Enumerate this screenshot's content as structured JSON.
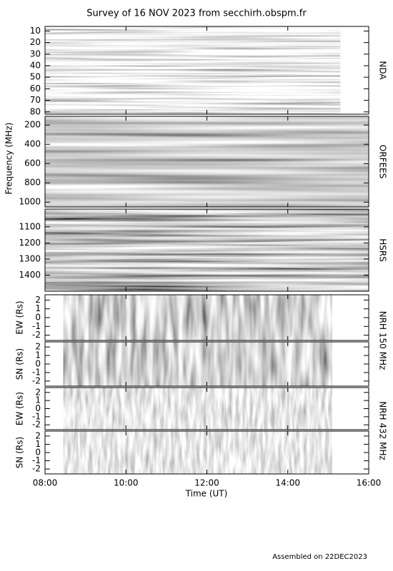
{
  "title": "Survey of 16 NOV 2023 from secchirh.obspm.fr",
  "footer": "Assembled on 22DEC2023",
  "frequency_label": "Frequency (MHz)",
  "x_axis": {
    "label": "Time (UT)",
    "xlim": [
      8,
      16
    ],
    "xticks": [
      {
        "value": 8,
        "label": "08:00"
      },
      {
        "value": 10,
        "label": "10:00"
      },
      {
        "value": 12,
        "label": "12:00"
      },
      {
        "value": 14,
        "label": "14:00"
      },
      {
        "value": 16,
        "label": "16:00"
      }
    ]
  },
  "chart_data": [
    {
      "type": "spectrogram",
      "instrument": "NDA",
      "ylim": [
        6,
        82
      ],
      "y_inverted": true,
      "yticks": [
        10,
        20,
        30,
        40,
        50,
        60,
        70,
        80
      ],
      "xrange": [
        8,
        15.3
      ],
      "texture": "nda"
    },
    {
      "type": "spectrogram",
      "instrument": "ORFEES",
      "ylim": [
        110,
        1050
      ],
      "y_inverted": true,
      "yticks": [
        200,
        400,
        600,
        800,
        1000
      ],
      "xrange": [
        8,
        16
      ],
      "texture": "orfees"
    },
    {
      "type": "spectrogram",
      "instrument": "HSRS",
      "ylim": [
        990,
        1500
      ],
      "y_inverted": true,
      "yticks": [
        1100,
        1200,
        1300,
        1400
      ],
      "xrange": [
        8,
        16
      ],
      "texture": "hsrs"
    },
    {
      "type": "image",
      "instrument": "NRH 150 MHz",
      "y_label": "EW (Rs)",
      "ylim": [
        -2.6,
        2.6
      ],
      "yticks": [
        -2,
        -1,
        0,
        1,
        2
      ],
      "xrange": [
        8.45,
        15.1
      ],
      "texture": "nrh"
    },
    {
      "type": "image",
      "y_label": "SN (Rs)",
      "ylim": [
        -2.6,
        2.6
      ],
      "yticks": [
        -2,
        -1,
        0,
        1,
        2
      ],
      "xrange": [
        8.45,
        15.1
      ],
      "texture": "nrh"
    },
    {
      "type": "image",
      "instrument": "NRH 432 MHz",
      "y_label": "EW (Rs)",
      "ylim": [
        -2.6,
        2.6
      ],
      "yticks": [
        -2,
        -1,
        0,
        1,
        2
      ],
      "xrange": [
        8.45,
        15.1
      ],
      "texture": "nrhlight"
    },
    {
      "type": "image",
      "y_label": "SN (Rs)",
      "ylim": [
        -2.6,
        2.6
      ],
      "yticks": [
        -2,
        -1,
        0,
        1,
        2
      ],
      "xrange": [
        8.45,
        15.1
      ],
      "texture": "nrhlight"
    }
  ]
}
